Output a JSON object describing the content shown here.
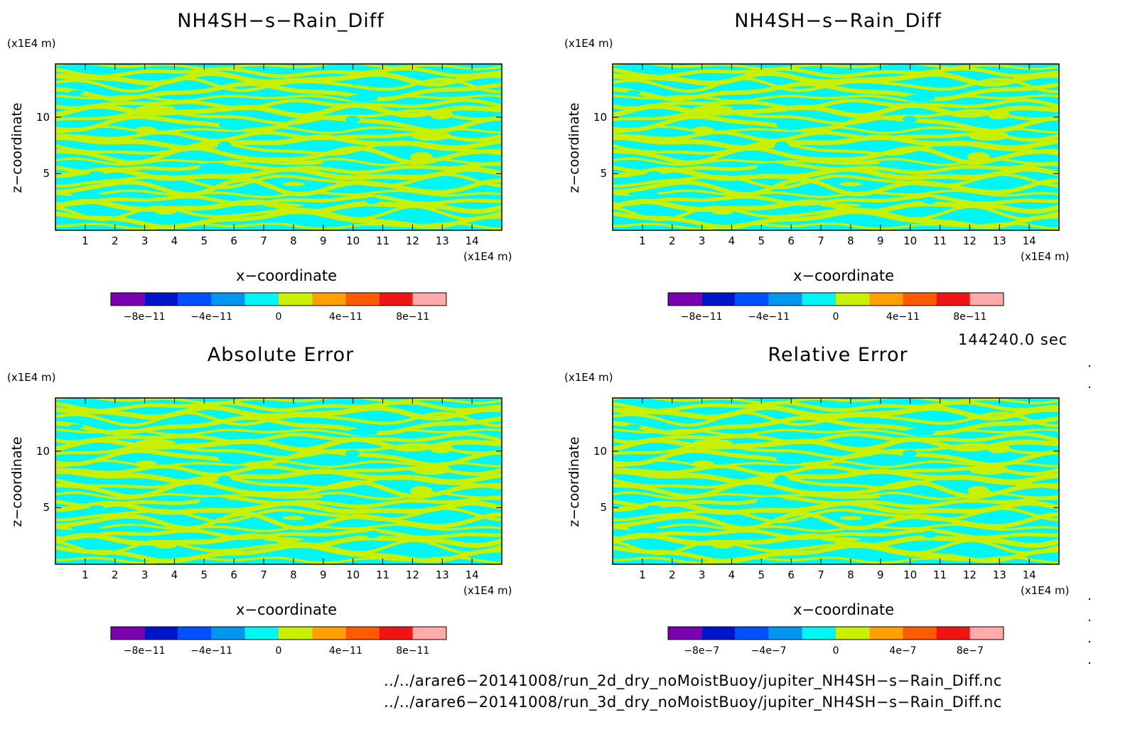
{
  "colors": {
    "cyan": "#00f5f5",
    "yellow": "#c8f000",
    "scale": [
      "#7a00b0",
      "#0014c8",
      "#0050ff",
      "#0096f0",
      "#00f5f5",
      "#c8f000",
      "#ffa000",
      "#ff5a00",
      "#f01414",
      "#ffaaaa"
    ]
  },
  "chart_data": [
    {
      "type": "heatmap",
      "title": "NH4SH−s−Rain_Diff",
      "xlabel": "x−coordinate",
      "ylabel": "z−coordinate",
      "xunit": "(x1E4 m)",
      "yunit": "(x1E4 m)",
      "xticks": [
        "1",
        "2",
        "3",
        "4",
        "5",
        "6",
        "7",
        "8",
        "9",
        "10",
        "11",
        "12",
        "13",
        "14"
      ],
      "yticks": [
        "5",
        "10"
      ],
      "xlim": [
        0,
        15
      ],
      "ylim": [
        0,
        14.7
      ],
      "colorbar_labels": [
        "−8e−11",
        "−4e−11",
        "0",
        "4e−11",
        "8e−11"
      ],
      "colorbar_range": [
        -1e-10,
        1e-10
      ]
    },
    {
      "type": "heatmap",
      "title": "NH4SH−s−Rain_Diff",
      "xlabel": "x−coordinate",
      "ylabel": "z−coordinate",
      "xunit": "(x1E4 m)",
      "yunit": "(x1E4 m)",
      "xticks": [
        "1",
        "2",
        "3",
        "4",
        "5",
        "6",
        "7",
        "8",
        "9",
        "10",
        "11",
        "12",
        "13",
        "14"
      ],
      "yticks": [
        "5",
        "10"
      ],
      "xlim": [
        0,
        15
      ],
      "ylim": [
        0,
        14.7
      ],
      "colorbar_labels": [
        "−8e−11",
        "−4e−11",
        "0",
        "4e−11",
        "8e−11"
      ],
      "colorbar_range": [
        -1e-10,
        1e-10
      ]
    },
    {
      "type": "heatmap",
      "title": "Absolute Error",
      "xlabel": "x−coordinate",
      "ylabel": "z−coordinate",
      "xunit": "(x1E4 m)",
      "yunit": "(x1E4 m)",
      "xticks": [
        "1",
        "2",
        "3",
        "4",
        "5",
        "6",
        "7",
        "8",
        "9",
        "10",
        "11",
        "12",
        "13",
        "14"
      ],
      "yticks": [
        "5",
        "10"
      ],
      "xlim": [
        0,
        15
      ],
      "ylim": [
        0,
        14.7
      ],
      "colorbar_labels": [
        "−8e−11",
        "−4e−11",
        "0",
        "4e−11",
        "8e−11"
      ],
      "colorbar_range": [
        -1e-10,
        1e-10
      ]
    },
    {
      "type": "heatmap",
      "title": "Relative Error",
      "xlabel": "x−coordinate",
      "ylabel": "z−coordinate",
      "xunit": "(x1E4 m)",
      "yunit": "(x1E4 m)",
      "xticks": [
        "1",
        "2",
        "3",
        "4",
        "5",
        "6",
        "7",
        "8",
        "9",
        "10",
        "11",
        "12",
        "13",
        "14"
      ],
      "yticks": [
        "5",
        "10"
      ],
      "xlim": [
        0,
        15
      ],
      "ylim": [
        0,
        14.7
      ],
      "colorbar_labels": [
        "−8e−7",
        "−4e−7",
        "0",
        "4e−7",
        "8e−7"
      ],
      "colorbar_range": [
        -1e-06,
        1e-06
      ]
    }
  ],
  "time_label": "144240.0 sec",
  "source_files": [
    "../../arare6−20141008/run_2d_dry_noMoistBuoy/jupiter_NH4SH−s−Rain_Diff.nc",
    "../../arare6−20141008/run_3d_dry_noMoistBuoy/jupiter_NH4SH−s−Rain_Diff.nc"
  ]
}
